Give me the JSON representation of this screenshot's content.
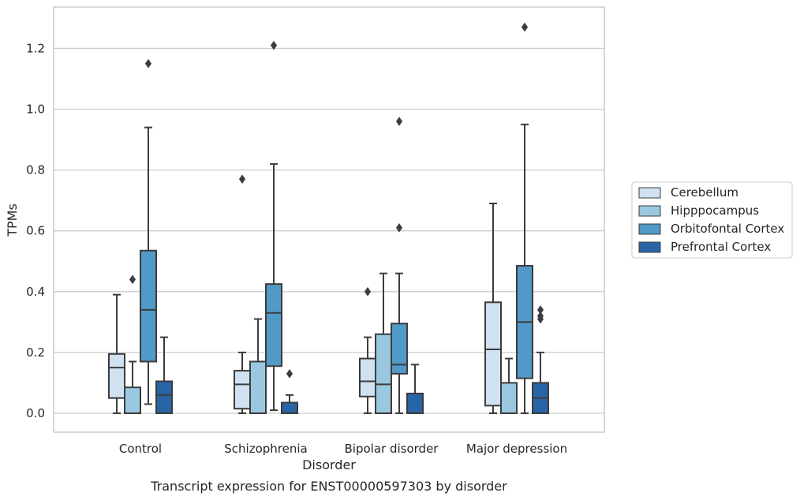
{
  "chart_data": {
    "type": "box",
    "title": "",
    "caption": "Transcript expression for ENST00000597303 by disorder",
    "xlabel": "Disorder",
    "ylabel": "TPMs",
    "ylim": [
      -0.06,
      1.34
    ],
    "yticks": [
      "0.0",
      "0.2",
      "0.4",
      "0.6",
      "0.8",
      "1.0",
      "1.2"
    ],
    "grid": "horizontal",
    "legend_position": "right",
    "categories": [
      "Control",
      "Schizophrenia",
      "Bipolar disorder",
      "Major depression"
    ],
    "series": [
      {
        "name": "Cerebellum",
        "color": "#d0e1f2",
        "boxes": [
          {
            "whislo": 0.0,
            "q1": 0.05,
            "med": 0.15,
            "q3": 0.195,
            "whishi": 0.39,
            "fliers": []
          },
          {
            "whislo": 0.0,
            "q1": 0.015,
            "med": 0.095,
            "q3": 0.14,
            "whishi": 0.2,
            "fliers": [
              0.77
            ]
          },
          {
            "whislo": 0.0,
            "q1": 0.055,
            "med": 0.105,
            "q3": 0.18,
            "whishi": 0.25,
            "fliers": [
              0.4
            ]
          },
          {
            "whislo": 0.0,
            "q1": 0.025,
            "med": 0.21,
            "q3": 0.365,
            "whishi": 0.69,
            "fliers": []
          }
        ]
      },
      {
        "name": "Hipppocampus",
        "color": "#9ac8e0",
        "boxes": [
          {
            "whislo": 0.0,
            "q1": 0.0,
            "med": 0.0,
            "q3": 0.085,
            "whishi": 0.17,
            "fliers": [
              0.44
            ]
          },
          {
            "whislo": 0.0,
            "q1": 0.0,
            "med": 0.0,
            "q3": 0.17,
            "whishi": 0.31,
            "fliers": []
          },
          {
            "whislo": 0.0,
            "q1": 0.0,
            "med": 0.095,
            "q3": 0.26,
            "whishi": 0.46,
            "fliers": []
          },
          {
            "whislo": 0.0,
            "q1": 0.0,
            "med": 0.0,
            "q3": 0.1,
            "whishi": 0.18,
            "fliers": []
          }
        ]
      },
      {
        "name": "Orbitofontal Cortex",
        "color": "#5199c7",
        "boxes": [
          {
            "whislo": 0.03,
            "q1": 0.17,
            "med": 0.34,
            "q3": 0.535,
            "whishi": 0.94,
            "fliers": [
              1.15
            ]
          },
          {
            "whislo": 0.01,
            "q1": 0.155,
            "med": 0.33,
            "q3": 0.425,
            "whishi": 0.82,
            "fliers": [
              1.21
            ]
          },
          {
            "whislo": 0.0,
            "q1": 0.13,
            "med": 0.16,
            "q3": 0.295,
            "whishi": 0.46,
            "fliers": [
              0.61,
              0.96
            ]
          },
          {
            "whislo": 0.0,
            "q1": 0.115,
            "med": 0.3,
            "q3": 0.485,
            "whishi": 0.95,
            "fliers": [
              1.27
            ]
          }
        ]
      },
      {
        "name": "Prefrontal Cortex",
        "color": "#2865a6",
        "boxes": [
          {
            "whislo": 0.0,
            "q1": 0.0,
            "med": 0.06,
            "q3": 0.105,
            "whishi": 0.25,
            "fliers": []
          },
          {
            "whislo": 0.0,
            "q1": 0.0,
            "med": 0.0,
            "q3": 0.035,
            "whishi": 0.06,
            "fliers": [
              0.13
            ]
          },
          {
            "whislo": 0.0,
            "q1": 0.0,
            "med": 0.0,
            "q3": 0.065,
            "whishi": 0.16,
            "fliers": []
          },
          {
            "whislo": 0.0,
            "q1": 0.0,
            "med": 0.05,
            "q3": 0.1,
            "whishi": 0.2,
            "fliers": [
              0.31,
              0.34,
              0.32
            ]
          }
        ]
      }
    ]
  }
}
